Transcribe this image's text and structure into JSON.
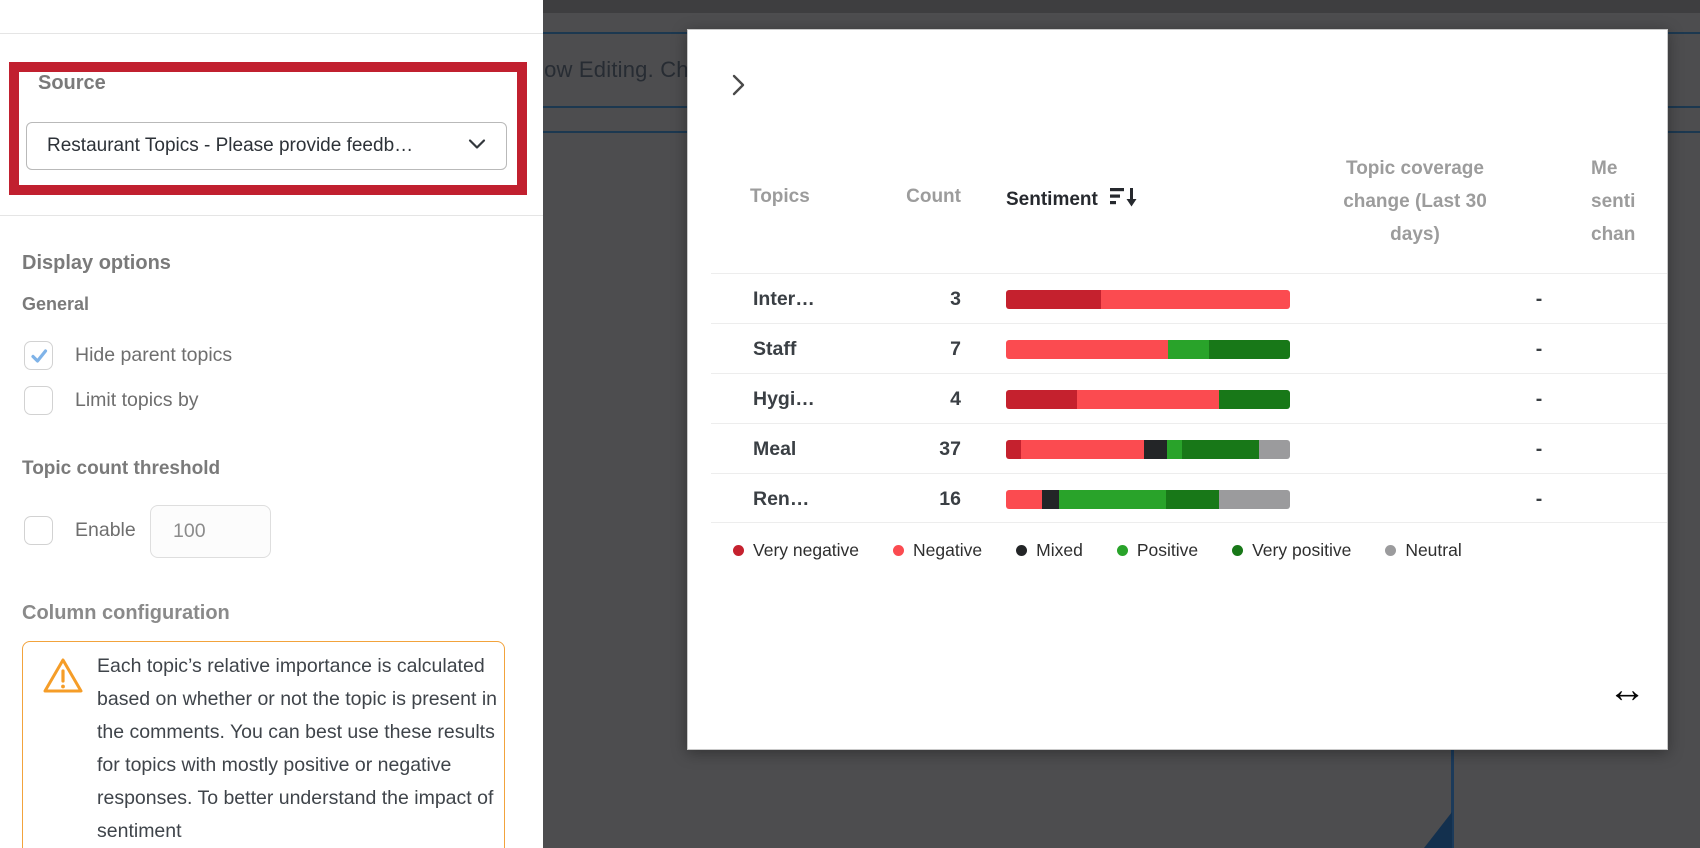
{
  "colors": {
    "annotation_red": "#c1202f",
    "banner_line": "#1c3850",
    "warning_orange": "#f2a33c",
    "check_blue": "#7fb3e8",
    "sentiment": {
      "very_negative": "#c5212e",
      "negative": "#fb4b50",
      "mixed": "#232527",
      "positive": "#29a32a",
      "very_positive": "#187818",
      "neutral": "#9b9b9d"
    }
  },
  "banner": {
    "text": "Now Editing. Ch"
  },
  "sidebar": {
    "source": {
      "label": "Source",
      "dropdown_value": "Restaurant Topics - Please provide feedb…"
    },
    "display_options": {
      "heading": "Display options",
      "general_heading": "General",
      "checkboxes": [
        {
          "label": "Hide parent topics",
          "checked": true
        },
        {
          "label": "Limit topics by",
          "checked": false
        }
      ]
    },
    "topic_count_threshold": {
      "heading": "Topic count threshold",
      "enable_label": "Enable",
      "enable_checked": false,
      "value": "100"
    },
    "column_configuration": {
      "heading": "Column configuration",
      "warning_text": "Each topic’s relative importance is calculated based on whether or not the topic is present in the comments. You can best use these results for topics with mostly positive or negative responses. To better understand the impact of sentiment"
    }
  },
  "widget": {
    "columns": {
      "topics": "Topics",
      "count": "Count",
      "sentiment": "Sentiment",
      "coverage_lines": [
        "Topic coverage",
        "change (Last 30",
        "days)"
      ],
      "mean_lines": [
        "Me",
        "senti",
        "chan"
      ]
    },
    "rows": [
      {
        "topic": "Inter…",
        "count": "3",
        "coverage": "-",
        "segments": [
          {
            "key": "very_negative",
            "pct": 33.3
          },
          {
            "key": "negative",
            "pct": 66.7
          }
        ]
      },
      {
        "topic": "Staff",
        "count": "7",
        "coverage": "-",
        "segments": [
          {
            "key": "negative",
            "pct": 57.1
          },
          {
            "key": "positive",
            "pct": 14.3
          },
          {
            "key": "very_positive",
            "pct": 28.6
          }
        ]
      },
      {
        "topic": "Hygi…",
        "count": "4",
        "coverage": "-",
        "segments": [
          {
            "key": "very_negative",
            "pct": 25
          },
          {
            "key": "negative",
            "pct": 50
          },
          {
            "key": "very_positive",
            "pct": 25
          }
        ]
      },
      {
        "topic": "Meal",
        "count": "37",
        "coverage": "-",
        "segments": [
          {
            "key": "very_negative",
            "pct": 5.4
          },
          {
            "key": "negative",
            "pct": 43.2
          },
          {
            "key": "mixed",
            "pct": 8.1
          },
          {
            "key": "positive",
            "pct": 5.4
          },
          {
            "key": "very_positive",
            "pct": 27.0
          },
          {
            "key": "neutral",
            "pct": 10.9
          }
        ]
      },
      {
        "topic": "Ren…",
        "count": "16",
        "coverage": "-",
        "segments": [
          {
            "key": "negative",
            "pct": 12.5
          },
          {
            "key": "mixed",
            "pct": 6.3
          },
          {
            "key": "positive",
            "pct": 37.5
          },
          {
            "key": "very_positive",
            "pct": 18.7
          },
          {
            "key": "neutral",
            "pct": 25.0
          }
        ]
      }
    ],
    "legend": [
      {
        "key": "very_negative",
        "label": "Very negative"
      },
      {
        "key": "negative",
        "label": "Negative"
      },
      {
        "key": "mixed",
        "label": "Mixed"
      },
      {
        "key": "positive",
        "label": "Positive"
      },
      {
        "key": "very_positive",
        "label": "Very positive"
      },
      {
        "key": "neutral",
        "label": "Neutral"
      }
    ]
  }
}
